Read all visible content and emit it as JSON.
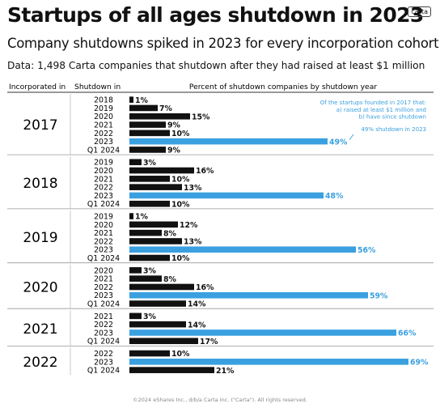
{
  "title": "Startups of all ages shutdown in 2023",
  "logo_text": "carta",
  "subtitle": "Company shutdowns spiked in 2023 for every incorporation cohort",
  "note": "Data:  1,498 Carta companies that shutdown after they had raised at least $1 million",
  "footer": "©2024 eShares Inc., d/b/a Carta Inc. (\"Carta\"). All rights reserved.",
  "colors": {
    "highlight": "#3aa0e0",
    "default": "#111111",
    "grid": "#999999",
    "header_rule": "#333333"
  },
  "chart_data": {
    "type": "bar",
    "orientation": "horizontal",
    "column_headers": {
      "incorporated": "Incorporated in",
      "shutdown": "Shutdown in",
      "percent": "Percent of shutdown companies by shutdown year"
    },
    "value_format": "%",
    "xlim": [
      0,
      100
    ],
    "groups": [
      {
        "incorporated": "2017",
        "rows": [
          {
            "label": "2018",
            "value": 1
          },
          {
            "label": "2019",
            "value": 7
          },
          {
            "label": "2020",
            "value": 15
          },
          {
            "label": "2021",
            "value": 9
          },
          {
            "label": "2022",
            "value": 10
          },
          {
            "label": "2023",
            "value": 49,
            "highlight": true
          },
          {
            "label": "Q1 2024",
            "value": 9
          }
        ]
      },
      {
        "incorporated": "2018",
        "rows": [
          {
            "label": "2019",
            "value": 3
          },
          {
            "label": "2020",
            "value": 16
          },
          {
            "label": "2021",
            "value": 10
          },
          {
            "label": "2022",
            "value": 13
          },
          {
            "label": "2023",
            "value": 48,
            "highlight": true
          },
          {
            "label": "Q1 2024",
            "value": 10
          }
        ]
      },
      {
        "incorporated": "2019",
        "rows": [
          {
            "label": "2019",
            "value": 1
          },
          {
            "label": "2020",
            "value": 12
          },
          {
            "label": "2021",
            "value": 8
          },
          {
            "label": "2022",
            "value": 13
          },
          {
            "label": "2023",
            "value": 56,
            "highlight": true
          },
          {
            "label": "Q1 2024",
            "value": 10
          }
        ]
      },
      {
        "incorporated": "2020",
        "rows": [
          {
            "label": "2020",
            "value": 3
          },
          {
            "label": "2021",
            "value": 8
          },
          {
            "label": "2022",
            "value": 16
          },
          {
            "label": "2023",
            "value": 59,
            "highlight": true
          },
          {
            "label": "Q1 2024",
            "value": 14
          }
        ]
      },
      {
        "incorporated": "2021",
        "rows": [
          {
            "label": "2021",
            "value": 3
          },
          {
            "label": "2022",
            "value": 14
          },
          {
            "label": "2023",
            "value": 66,
            "highlight": true
          },
          {
            "label": "Q1 2024",
            "value": 17
          }
        ]
      },
      {
        "incorporated": "2022",
        "rows": [
          {
            "label": "2022",
            "value": 10
          },
          {
            "label": "2023",
            "value": 69,
            "highlight": true
          },
          {
            "label": "Q1 2024",
            "value": 21
          }
        ]
      }
    ],
    "annotation": {
      "lines": [
        "Of the startups founded in 2017 that:",
        "a) raised at least $1 million and",
        "b) have since shutdown"
      ],
      "callout": "49% shutdown in 2023"
    }
  }
}
